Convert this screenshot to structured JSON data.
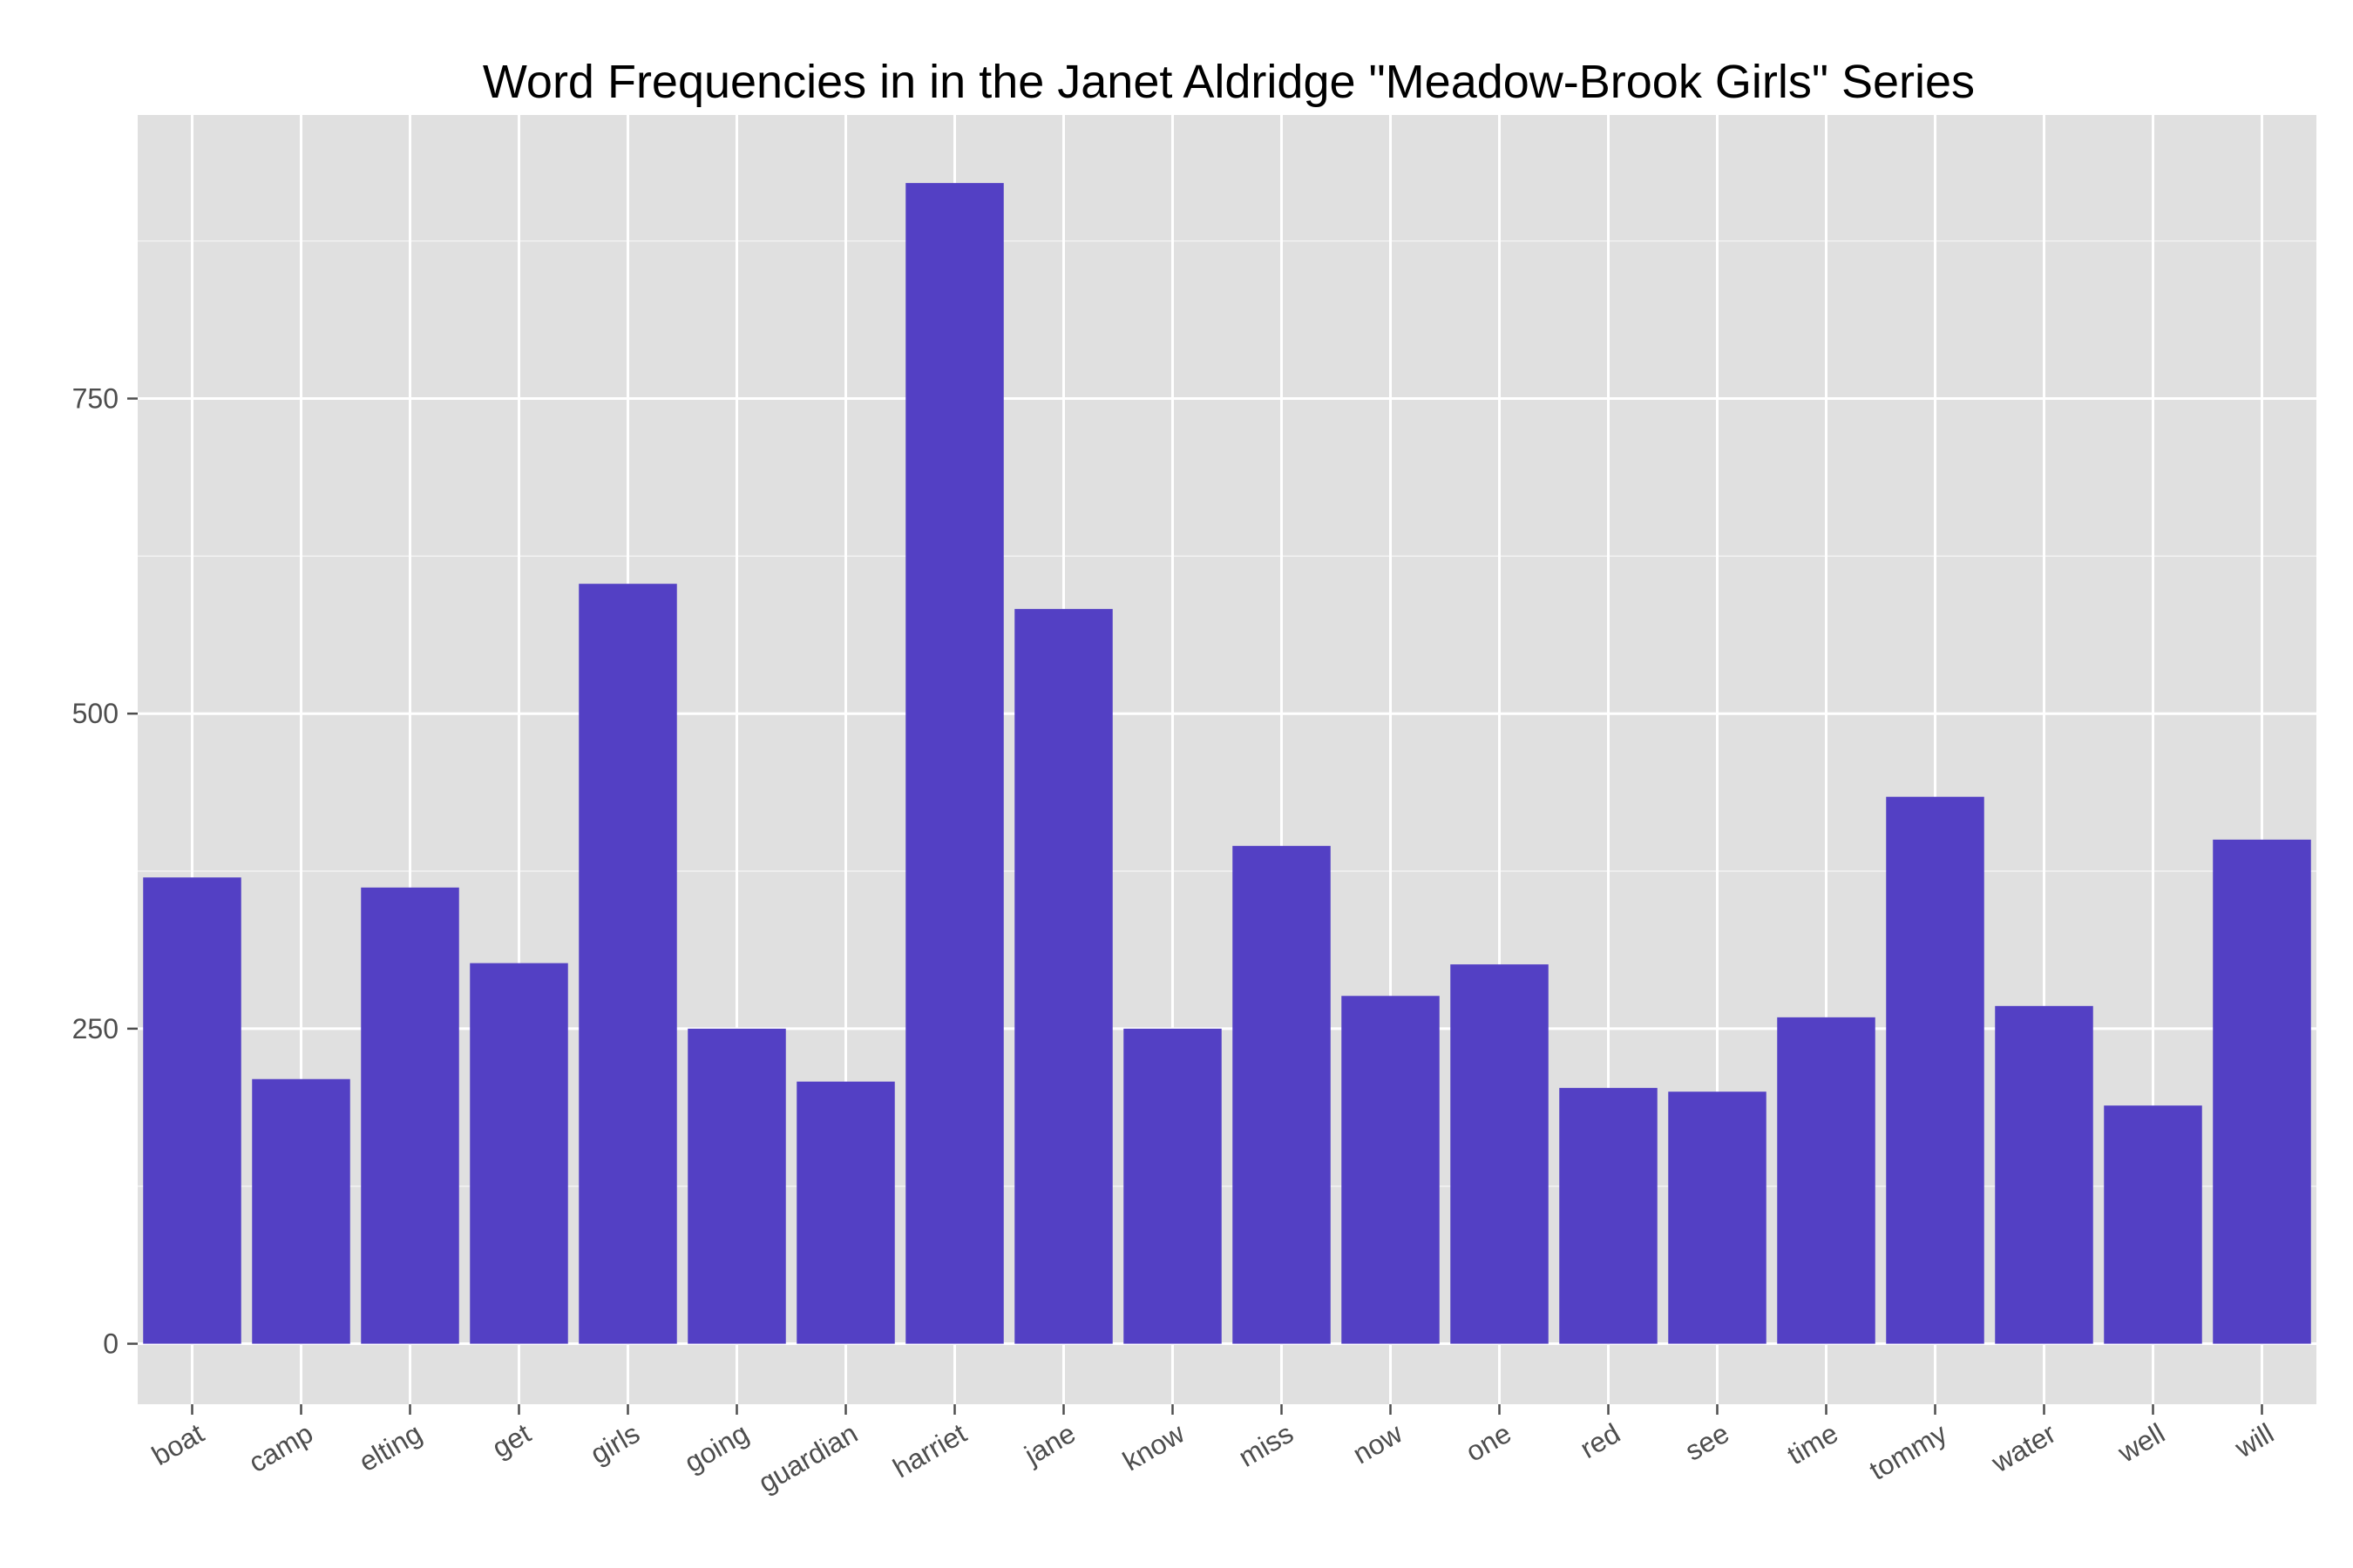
{
  "chart_data": {
    "type": "bar",
    "title": "Word Frequencies in in the Janet Aldridge \"Meadow-Brook Girls\" Series",
    "xlabel": "",
    "ylabel": "",
    "categories": [
      "boat",
      "camp",
      "elting",
      "get",
      "girls",
      "going",
      "guardian",
      "harriet",
      "jane",
      "know",
      "miss",
      "now",
      "one",
      "red",
      "see",
      "time",
      "tommy",
      "water",
      "well",
      "will"
    ],
    "values": [
      370,
      210,
      362,
      302,
      603,
      250,
      208,
      921,
      583,
      250,
      395,
      276,
      301,
      203,
      200,
      259,
      434,
      268,
      189,
      400
    ],
    "yticks": [
      0,
      250,
      500,
      750
    ],
    "ylim": [
      -48,
      975
    ],
    "grid": true,
    "bar_color": "#5340c4",
    "panel_color": "#e0e0e0",
    "grid_color": "#ffffff"
  }
}
